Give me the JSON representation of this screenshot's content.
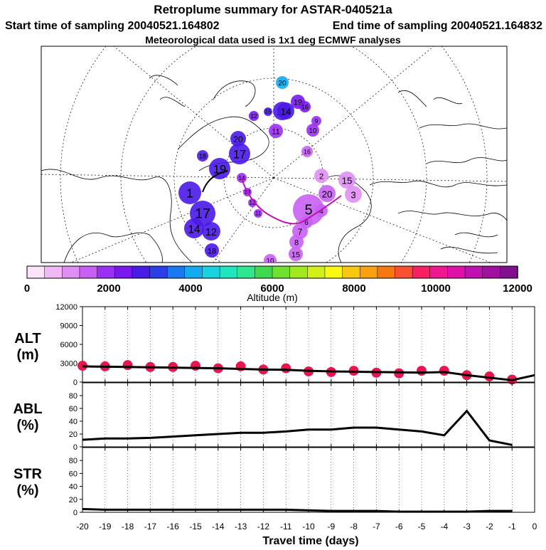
{
  "header": {
    "title": "Retroplume summary for ASTAR-040521a",
    "start": "Start time of sampling 20040521.164802",
    "end": "End time of sampling 20040521.164832",
    "met": "Meteorological data used is 1x1 deg ECMWF analyses"
  },
  "colorbar": {
    "ticks": [
      "0",
      "2000",
      "4000",
      "6000",
      "8000",
      "10000",
      "12000"
    ],
    "label": "Altitude (m)",
    "colors": [
      "#fbe3fb",
      "#f0b8f5",
      "#e08ef5",
      "#c860f5",
      "#9b2ff5",
      "#7a18f0",
      "#4a1ae8",
      "#2a3ee8",
      "#1a78f0",
      "#14aaf0",
      "#18d2e0",
      "#20e6c0",
      "#30e690",
      "#40d850",
      "#70e030",
      "#a0e820",
      "#d0f018",
      "#f8f810",
      "#f8c810",
      "#f8a010",
      "#f87810",
      "#f85030",
      "#f82060",
      "#f01890",
      "#e010a8",
      "#c010b0",
      "#a010a0",
      "#801090"
    ]
  },
  "map": {
    "labels": [
      "20",
      "19",
      "16",
      "13",
      "12",
      "15",
      "14",
      "11",
      "10",
      "9",
      "16",
      "20",
      "17",
      "18",
      "19",
      "1",
      "2",
      "15",
      "17",
      "14",
      "12",
      "20",
      "18",
      "5",
      "3",
      "4",
      "6",
      "7",
      "8",
      "15",
      "10",
      "11",
      "12",
      "13",
      "14"
    ]
  },
  "chart_data": [
    {
      "type": "line",
      "title": "ALT",
      "ylabel": "ALT (m)",
      "ylabel_line1": "ALT",
      "ylabel_line2": "(m)",
      "x": [
        -20,
        -19,
        -18,
        -17,
        -16,
        -15,
        -14,
        -13,
        -12,
        -11,
        -10,
        -9,
        -8,
        -7,
        -6,
        -5,
        -4,
        -3,
        -2,
        -1,
        0
      ],
      "values": [
        2500,
        2450,
        2400,
        2350,
        2300,
        2250,
        2200,
        2100,
        2000,
        1950,
        1800,
        1700,
        1650,
        1600,
        1550,
        1500,
        1600,
        1100,
        700,
        300,
        1100
      ],
      "dots": [
        2600,
        2500,
        2700,
        2400,
        2400,
        2600,
        2200,
        2500,
        2000,
        2200,
        1700,
        1600,
        1800,
        1500,
        1400,
        1800,
        1800,
        1100,
        900,
        400
      ],
      "yticks": [
        "0",
        "3000",
        "6000",
        "9000",
        "12000"
      ],
      "ylim": [
        0,
        12000
      ],
      "colors": {
        "line": "#000000",
        "dots": "#e8154f"
      }
    },
    {
      "type": "line",
      "title": "ABL",
      "ylabel": "ABL (%)",
      "ylabel_line1": "ABL",
      "ylabel_line2": "(%)",
      "x": [
        -20,
        -19,
        -18,
        -17,
        -16,
        -15,
        -14,
        -13,
        -12,
        -11,
        -10,
        -9,
        -8,
        -7,
        -6,
        -5,
        -4,
        -3,
        -2,
        -1
      ],
      "values": [
        11,
        13,
        13,
        14,
        16,
        18,
        20,
        22,
        22,
        24,
        27,
        27,
        30,
        30,
        27,
        24,
        18,
        56,
        10,
        3
      ],
      "yticks": [
        "0",
        "20",
        "40",
        "60",
        "80"
      ],
      "ylim": [
        0,
        100
      ]
    },
    {
      "type": "line",
      "title": "STR",
      "ylabel": "STR (%)",
      "ylabel_line1": "STR",
      "ylabel_line2": "(%)",
      "x": [
        -20,
        -19,
        -18,
        -17,
        -16,
        -15,
        -14,
        -13,
        -12,
        -11,
        -10,
        -9,
        -8,
        -7,
        -6,
        -5,
        -4,
        -3,
        -2,
        -1
      ],
      "values": [
        5,
        4,
        4,
        4,
        4,
        4,
        4,
        4,
        4,
        4,
        3,
        2,
        2,
        2,
        1,
        1,
        1,
        1,
        2,
        2
      ],
      "yticks": [
        "0",
        "20",
        "40",
        "60",
        "80"
      ],
      "ylim": [
        0,
        100
      ],
      "xticks": [
        "-20",
        "-19",
        "-18",
        "-17",
        "-16",
        "-15",
        "-14",
        "-13",
        "-12",
        "-11",
        "-10",
        "-9",
        "-8",
        "-7",
        "-6",
        "-5",
        "-4",
        "-3",
        "-2",
        "-1",
        "0"
      ],
      "xlabel": "Travel time (days)"
    }
  ]
}
